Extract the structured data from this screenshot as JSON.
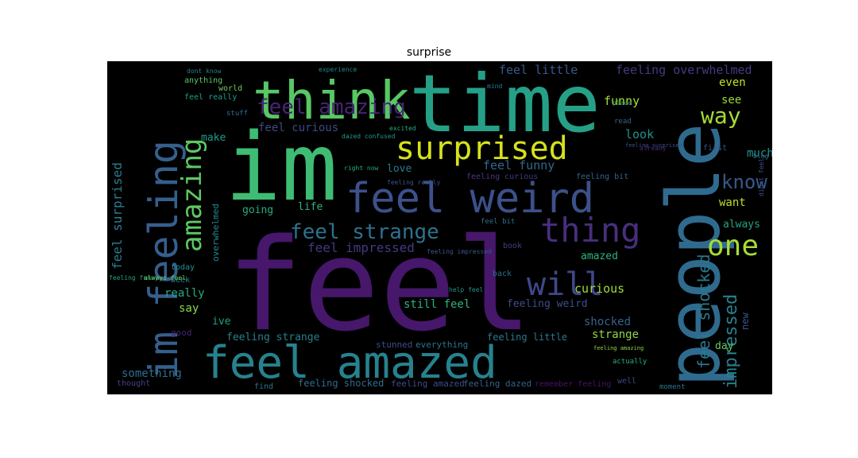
{
  "title": "surprise",
  "colors": {
    "background": "#000000",
    "figure_background": "#ffffff"
  },
  "words": [
    {
      "text": "feel",
      "color": "#46176a"
    },
    {
      "text": "im",
      "color": "#3ebc74"
    },
    {
      "text": "time",
      "color": "#25a087"
    },
    {
      "text": "people",
      "color": "#2f6b8e"
    },
    {
      "text": "think",
      "color": "#58c765"
    },
    {
      "text": "feel weird",
      "color": "#3c518a"
    },
    {
      "text": "feel amazed",
      "color": "#26828e"
    },
    {
      "text": "im feeling",
      "color": "#355f8d"
    },
    {
      "text": "surprised",
      "color": "#d6e21b"
    },
    {
      "text": "amazing",
      "color": "#5ec962"
    },
    {
      "text": "thing",
      "color": "#472f7d"
    },
    {
      "text": "will",
      "color": "#3f4889"
    },
    {
      "text": "one",
      "color": "#a8db34"
    },
    {
      "text": "feel strange",
      "color": "#2c728e"
    },
    {
      "text": "feel amazing",
      "color": "#482475"
    },
    {
      "text": "know",
      "color": "#38588c"
    },
    {
      "text": "way",
      "color": "#a5db36"
    },
    {
      "text": "impressed",
      "color": "#26828e"
    },
    {
      "text": "feel shocked",
      "color": "#2a788e"
    },
    {
      "text": "feel surprised",
      "color": "#287c8e"
    },
    {
      "text": "feel impressed",
      "color": "#453882"
    },
    {
      "text": "feel little",
      "color": "#38598c"
    },
    {
      "text": "feeling overwhelmed",
      "color": "#443a83"
    },
    {
      "text": "feel curious",
      "color": "#3e4a89"
    },
    {
      "text": "feel funny",
      "color": "#31688e"
    },
    {
      "text": "funny",
      "color": "#addc30"
    },
    {
      "text": "see",
      "color": "#9bd93c"
    },
    {
      "text": "even",
      "color": "#c5e021"
    },
    {
      "text": "look",
      "color": "#20928c"
    },
    {
      "text": "love",
      "color": "#2a788e"
    },
    {
      "text": "much",
      "color": "#1f948c"
    },
    {
      "text": "want",
      "color": "#bddf26"
    },
    {
      "text": "always",
      "color": "#20a486"
    },
    {
      "text": "going",
      "color": "#25ac82"
    },
    {
      "text": "life",
      "color": "#31b57b"
    },
    {
      "text": "make",
      "color": "#1e9c89"
    },
    {
      "text": "really",
      "color": "#25ac82"
    },
    {
      "text": "say",
      "color": "#8bd646"
    },
    {
      "text": "ive",
      "color": "#1fa088"
    },
    {
      "text": "still feel",
      "color": "#2db27d"
    },
    {
      "text": "feeling weird",
      "color": "#3d4e8a"
    },
    {
      "text": "curious",
      "color": "#a2da37"
    },
    {
      "text": "shocked",
      "color": "#33638d"
    },
    {
      "text": "strange",
      "color": "#90d743"
    },
    {
      "text": "amazed",
      "color": "#2eb37c"
    },
    {
      "text": "day",
      "color": "#67cc5c"
    },
    {
      "text": "new",
      "color": "#3a548c"
    },
    {
      "text": "feeling strange",
      "color": "#26828e"
    },
    {
      "text": "stunned",
      "color": "#3d4d8a"
    },
    {
      "text": "everything",
      "color": "#2b748e"
    },
    {
      "text": "feeling little",
      "color": "#2a788e"
    },
    {
      "text": "something",
      "color": "#2e6e8e"
    },
    {
      "text": "overwhelmed",
      "color": "#228b8d"
    },
    {
      "text": "feeling shocked",
      "color": "#2f6c8e"
    },
    {
      "text": "feeling amazed",
      "color": "#3e4c8a"
    },
    {
      "text": "feeling dazed",
      "color": "#34618d"
    },
    {
      "text": "remember feeling",
      "color": "#481467"
    },
    {
      "text": "find",
      "color": "#2a768e"
    },
    {
      "text": "thought",
      "color": "#414487"
    },
    {
      "text": "feel really",
      "color": "#1f9e89"
    },
    {
      "text": "world",
      "color": "#6ece58"
    },
    {
      "text": "stuff",
      "color": "#2c718e"
    },
    {
      "text": "dont know",
      "color": "#27808e"
    },
    {
      "text": "experience",
      "color": "#238a8d"
    },
    {
      "text": "anything",
      "color": "#5cc863"
    },
    {
      "text": "feeling surprised",
      "color": "#3b528b"
    },
    {
      "text": "feeling curious",
      "color": "#443983"
    },
    {
      "text": "feeling bit",
      "color": "#32648e"
    },
    {
      "text": "read",
      "color": "#31688e"
    },
    {
      "text": "first",
      "color": "#3b528b"
    },
    {
      "text": "feeling really",
      "color": "#3b528b"
    },
    {
      "text": "right now",
      "color": "#22a884"
    },
    {
      "text": "today",
      "color": "#21918c"
    },
    {
      "text": "week",
      "color": "#23898e"
    },
    {
      "text": "feel bit",
      "color": "#2d708e"
    },
    {
      "text": "back",
      "color": "#2e6e8e"
    },
    {
      "text": "book",
      "color": "#433e85"
    },
    {
      "text": "feeling impressed",
      "color": "#38588c"
    },
    {
      "text": "help feel",
      "color": "#1f968b"
    },
    {
      "text": "feeling funny",
      "color": "#20a386"
    },
    {
      "text": "always feel",
      "color": "#6ccd5a"
    },
    {
      "text": "good",
      "color": "#482173"
    },
    {
      "text": "feeling amazing",
      "color": "#8fd744"
    },
    {
      "text": "moment",
      "color": "#2a788e"
    },
    {
      "text": "well",
      "color": "#3e4989"
    },
    {
      "text": "actually",
      "color": "#28ae80"
    },
    {
      "text": "dazed confused",
      "color": "#1f9a8a"
    },
    {
      "text": "excited",
      "color": "#25ac82"
    },
    {
      "text": "mind",
      "color": "#287d8e"
    },
    {
      "text": "place",
      "color": "#1fa088"
    },
    {
      "text": "already",
      "color": "#482878"
    },
    {
      "text": "blog",
      "color": "#2d708e"
    },
    {
      "text": "didnt feel",
      "color": "#3b528b"
    }
  ]
}
